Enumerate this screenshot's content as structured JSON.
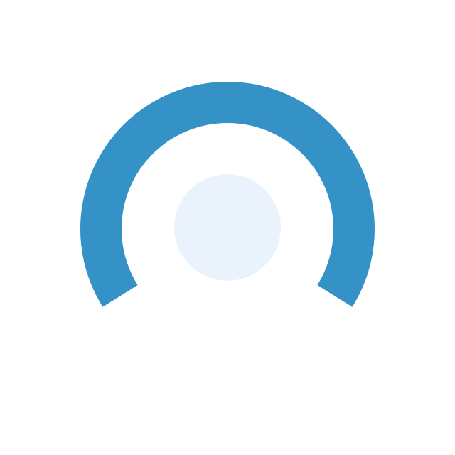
{
  "gauge": {
    "fill_fraction": 1.0,
    "colors": {
      "arc": "#3592c6",
      "center_knob": "#eaf3fb",
      "background": "#ffffff"
    }
  },
  "icons": {
    "gauge": "gauge-arc-icon",
    "knob": "center-knob-icon"
  }
}
